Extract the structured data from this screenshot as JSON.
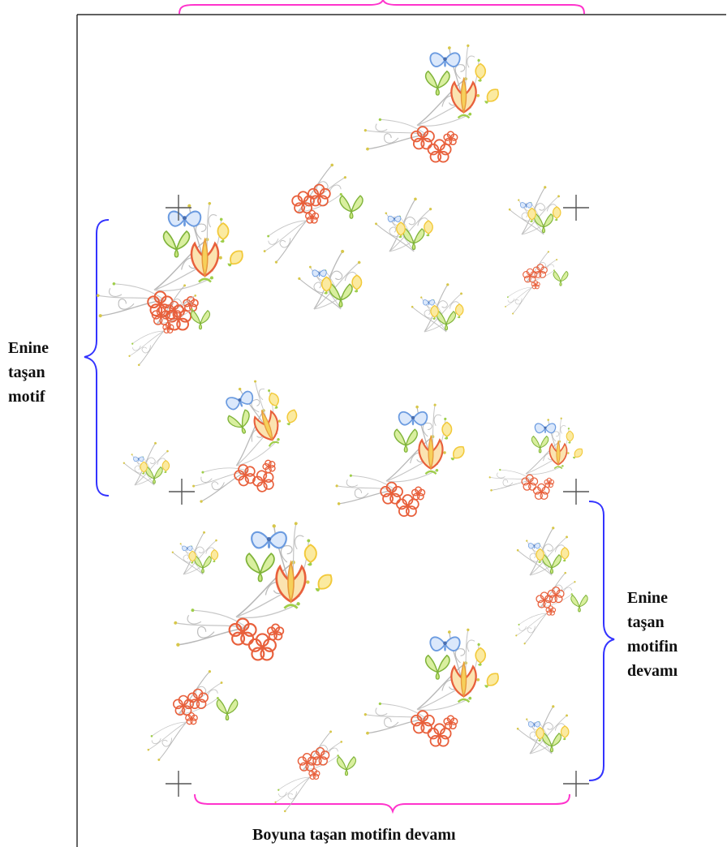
{
  "labels": {
    "left": {
      "line1": "Enine",
      "line2": "taşan",
      "line3": "motif"
    },
    "right": {
      "line1": "Enine",
      "line2": "taşan",
      "line3": "motifin",
      "line4": "devamı"
    },
    "bottom": "Boyuna taşan motifin devamı"
  },
  "colors": {
    "top_brace": "#ff33cc",
    "bottom_brace": "#ff33cc",
    "left_brace": "#3333ff",
    "right_brace": "#3333ff",
    "frame": "#000000",
    "crosshair": "#555555",
    "flower_red": "#e8603c",
    "flower_yellow": "#f2c93a",
    "flower_blue": "#6b9be0",
    "leaf_green": "#9fce4a",
    "stem_gray": "#b8b8b8"
  },
  "icons": [
    "crosshair-mark",
    "floral-motif"
  ]
}
